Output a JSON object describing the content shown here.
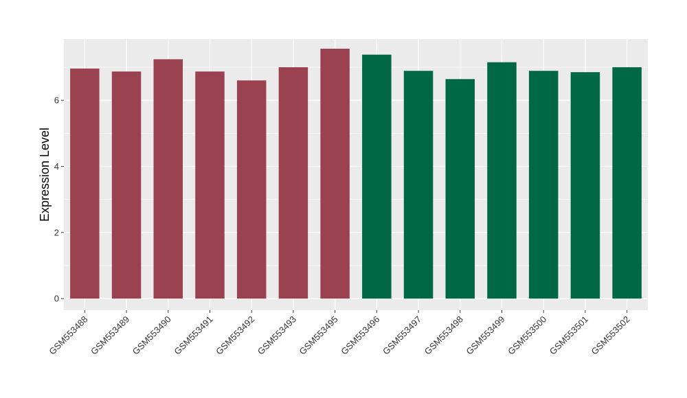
{
  "chart_data": {
    "type": "bar",
    "title": "",
    "xlabel": "",
    "ylabel": "Expression Level",
    "ylim": [
      -0.35,
      7.85
    ],
    "yticks": [
      0,
      2,
      4,
      6
    ],
    "grid": true,
    "legend": "none",
    "categories": [
      "GSM553488",
      "GSM553489",
      "GSM553490",
      "GSM553491",
      "GSM553492",
      "GSM553493",
      "GSM553495",
      "GSM553496",
      "GSM553497",
      "GSM553498",
      "GSM553499",
      "GSM553500",
      "GSM553501",
      "GSM553502"
    ],
    "values": [
      6.96,
      6.87,
      7.24,
      6.87,
      6.6,
      7.0,
      7.56,
      7.38,
      6.89,
      6.64,
      7.15,
      6.89,
      6.85,
      7.0
    ],
    "groups": [
      0,
      0,
      0,
      0,
      0,
      0,
      0,
      1,
      1,
      1,
      1,
      1,
      1,
      1
    ],
    "group_colors": [
      "#9A4250",
      "#006845"
    ],
    "panel_color": "#EBEBEB",
    "grid_color": "#FFFFFF"
  }
}
